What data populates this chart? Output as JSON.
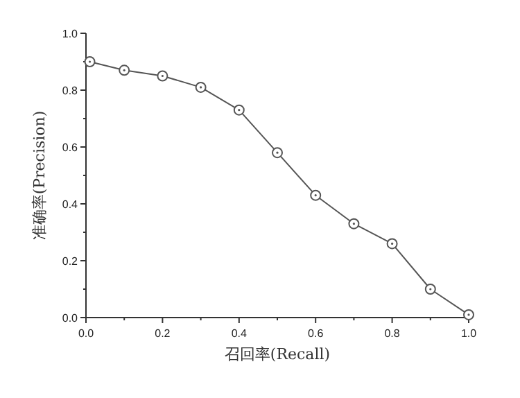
{
  "chart_data": {
    "type": "line",
    "xlabel": "召回率(Recall)",
    "ylabel": "准确率(Precision)",
    "x": [
      0.01,
      0.1,
      0.2,
      0.3,
      0.4,
      0.5,
      0.6,
      0.7,
      0.8,
      0.9,
      1.0
    ],
    "series": [
      {
        "color": "#555555",
        "values": [
          0.9,
          0.87,
          0.85,
          0.81,
          0.73,
          0.58,
          0.43,
          0.33,
          0.26,
          0.1,
          0.01
        ]
      }
    ],
    "xlim": [
      0,
      1
    ],
    "ylim": [
      0,
      1
    ],
    "xticks": [
      {
        "value": 0,
        "label": "0.0"
      },
      {
        "value": 0.1,
        "label": null
      },
      0.2,
      {
        "value": 0.3,
        "label": null
      },
      0.4,
      {
        "value": 0.5,
        "label": null
      },
      0.6,
      {
        "value": 0.7,
        "label": null
      },
      0.8,
      {
        "value": 0.9,
        "label": null
      },
      {
        "value": 1,
        "label": "1.0"
      }
    ],
    "yticks": [
      {
        "value": 0,
        "label": "0.0"
      },
      {
        "value": 0.1,
        "label": null
      },
      0.2,
      {
        "value": 0.3,
        "label": null
      },
      0.4,
      {
        "value": 0.5,
        "label": null
      },
      0.6,
      {
        "value": 0.7,
        "label": null
      },
      0.8,
      {
        "value": 0.9,
        "label": null
      },
      {
        "value": 1,
        "label": "1.0"
      }
    ],
    "marker": "circle",
    "line_style": "solid"
  }
}
